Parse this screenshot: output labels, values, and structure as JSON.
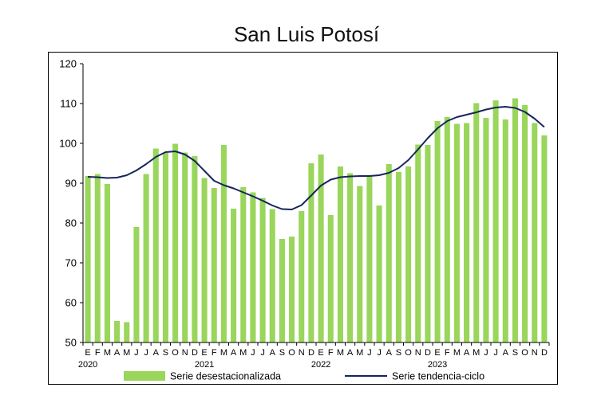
{
  "chart_data": {
    "type": "bar",
    "title": "San Luis Potosí",
    "xlabel": "",
    "ylabel": "",
    "ylim": [
      50,
      120
    ],
    "yticks": [
      50,
      60,
      70,
      80,
      90,
      100,
      110,
      120
    ],
    "grid": false,
    "legend_position": "bottom",
    "month_letters": [
      "E",
      "F",
      "M",
      "A",
      "M",
      "J",
      "J",
      "A",
      "S",
      "O",
      "N",
      "D",
      "E",
      "F",
      "M",
      "A",
      "M",
      "J",
      "J",
      "A",
      "S",
      "O",
      "N",
      "D",
      "E",
      "F",
      "M",
      "A",
      "M",
      "J",
      "J",
      "A",
      "S",
      "O",
      "N",
      "D",
      "E",
      "F",
      "M",
      "A",
      "M",
      "J",
      "J",
      "A",
      "S",
      "O",
      "N",
      "D"
    ],
    "year_labels": [
      {
        "index": 0,
        "label": "2020"
      },
      {
        "index": 12,
        "label": "2021"
      },
      {
        "index": 24,
        "label": "2022"
      },
      {
        "index": 36,
        "label": "2023"
      }
    ],
    "series": [
      {
        "name": "Serie desestacionalizada",
        "kind": "bar",
        "color": "#99d65b",
        "values": [
          91.8,
          92.3,
          89.8,
          55.4,
          55.1,
          79.0,
          92.3,
          98.7,
          97.6,
          99.9,
          97.7,
          96.8,
          91.3,
          88.8,
          99.6,
          83.6,
          89.0,
          87.7,
          86.3,
          83.5,
          76.0,
          76.6,
          83.0,
          95.0,
          97.2,
          82.0,
          94.2,
          92.5,
          89.3,
          91.8,
          84.4,
          94.8,
          92.8,
          94.2,
          99.7,
          99.6,
          105.6,
          106.6,
          104.9,
          105.1,
          110.1,
          106.4,
          110.8,
          106.0,
          111.3,
          109.6,
          105.1,
          102.0
        ]
      },
      {
        "name": "Serie tendencia-ciclo",
        "kind": "line",
        "color": "#16255c",
        "values": [
          91.6,
          91.5,
          91.3,
          91.4,
          92.0,
          93.2,
          94.8,
          96.6,
          97.8,
          98.0,
          97.2,
          95.6,
          93.1,
          90.6,
          89.5,
          88.7,
          87.7,
          86.7,
          85.6,
          84.4,
          83.5,
          83.4,
          84.5,
          86.9,
          89.4,
          90.9,
          91.5,
          91.7,
          91.8,
          91.8,
          92.0,
          92.6,
          93.8,
          95.8,
          98.5,
          101.3,
          103.8,
          105.6,
          106.6,
          107.2,
          107.8,
          108.5,
          109.0,
          109.2,
          108.9,
          107.9,
          106.2,
          104.1
        ]
      }
    ]
  }
}
